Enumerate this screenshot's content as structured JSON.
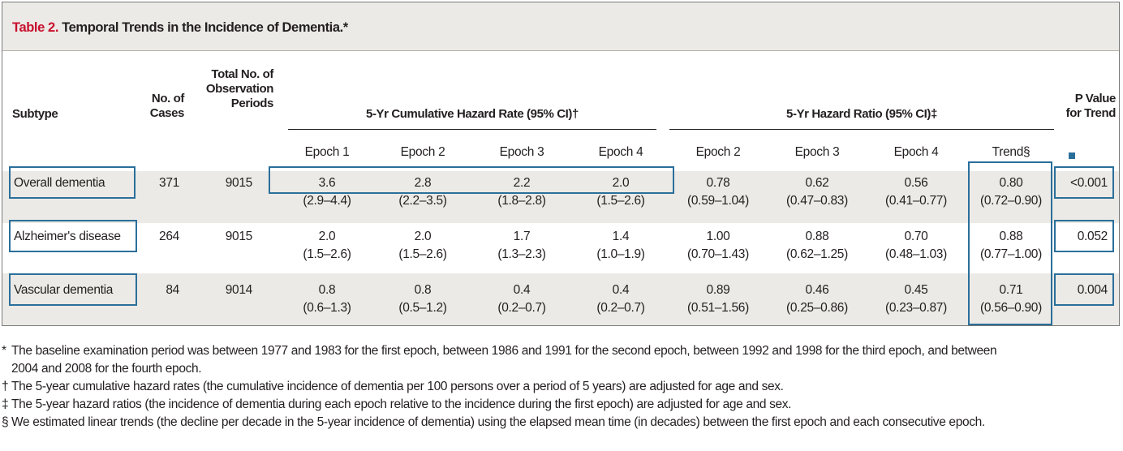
{
  "title": {
    "number": "Table 2.",
    "text": " Temporal Trends in the Incidence of Dementia.*"
  },
  "headers": {
    "subtype": "Subtype",
    "cases_1": "No. of",
    "cases_2": "Cases",
    "periods_1": "Total No. of",
    "periods_2": "Observation",
    "periods_3": "Periods",
    "hazard_rate": "5-Yr Cumulative Hazard Rate (95% CI)†",
    "hazard_ratio": "5-Yr Hazard Ratio (95% CI)‡",
    "pvalue_1": "P Value",
    "pvalue_2": "for Trend"
  },
  "subheaders": [
    "Epoch 1",
    "Epoch 2",
    "Epoch 3",
    "Epoch 4",
    "Epoch 2",
    "Epoch 3",
    "Epoch 4",
    "Trend§"
  ],
  "rows": [
    {
      "subtype": "Overall dementia",
      "cases": "371",
      "periods": "9015",
      "vals": [
        [
          "3.6",
          "(2.9–4.4)"
        ],
        [
          "2.8",
          "(2.2–3.5)"
        ],
        [
          "2.2",
          "(1.8–2.8)"
        ],
        [
          "2.0",
          "(1.5–2.6)"
        ],
        [
          "0.78",
          "(0.59–1.04)"
        ],
        [
          "0.62",
          "(0.47–0.83)"
        ],
        [
          "0.56",
          "(0.41–0.77)"
        ],
        [
          "0.80",
          "(0.72–0.90)"
        ]
      ],
      "p": "<0.001"
    },
    {
      "subtype": "Alzheimer's disease",
      "cases": "264",
      "periods": "9015",
      "vals": [
        [
          "2.0",
          "(1.5–2.6)"
        ],
        [
          "2.0",
          "(1.5–2.6)"
        ],
        [
          "1.7",
          "(1.3–2.3)"
        ],
        [
          "1.4",
          "(1.0–1.9)"
        ],
        [
          "1.00",
          "(0.70–1.43)"
        ],
        [
          "0.88",
          "(0.62–1.25)"
        ],
        [
          "0.70",
          "(0.48–1.03)"
        ],
        [
          "0.88",
          "(0.77–1.00)"
        ]
      ],
      "p": "0.052"
    },
    {
      "subtype": "Vascular dementia",
      "cases": "84",
      "periods": "9014",
      "vals": [
        [
          "0.8",
          "(0.6–1.3)"
        ],
        [
          "0.8",
          "(0.5–1.2)"
        ],
        [
          "0.4",
          "(0.2–0.7)"
        ],
        [
          "0.4",
          "(0.2–0.7)"
        ],
        [
          "0.89",
          "(0.51–1.56)"
        ],
        [
          "0.46",
          "(0.25–0.86)"
        ],
        [
          "0.45",
          "(0.23–0.87)"
        ],
        [
          "0.71",
          "(0.56–0.90)"
        ]
      ],
      "p": "0.004"
    }
  ],
  "footnotes": [
    {
      "mark": "*",
      "lines": [
        "The baseline examination period was between 1977 and 1983 for the first epoch, between 1986 and 1991 for the second epoch, between 1992 and 1998 for the third epoch, and between",
        "2004 and 2008 for the fourth epoch."
      ]
    },
    {
      "mark": "†",
      "lines": [
        "The 5-year cumulative hazard rates (the cumulative incidence of dementia per 100 persons over a period of 5 years) are adjusted for age and sex."
      ]
    },
    {
      "mark": "‡",
      "lines": [
        "The 5-year hazard ratios (the incidence of dementia during each epoch relative to the incidence during the first epoch) are adjusted for age and sex."
      ]
    },
    {
      "mark": "§",
      "lines": [
        "We estimated linear trends (the decline per decade in the 5-year incidence of dementia) using the elapsed mean time (in decades) between the first epoch and each consecutive epoch."
      ]
    }
  ],
  "colors": {
    "accent": "#c8102e",
    "highlight_box": "#2a6f9a",
    "shade": "#eceae6"
  }
}
